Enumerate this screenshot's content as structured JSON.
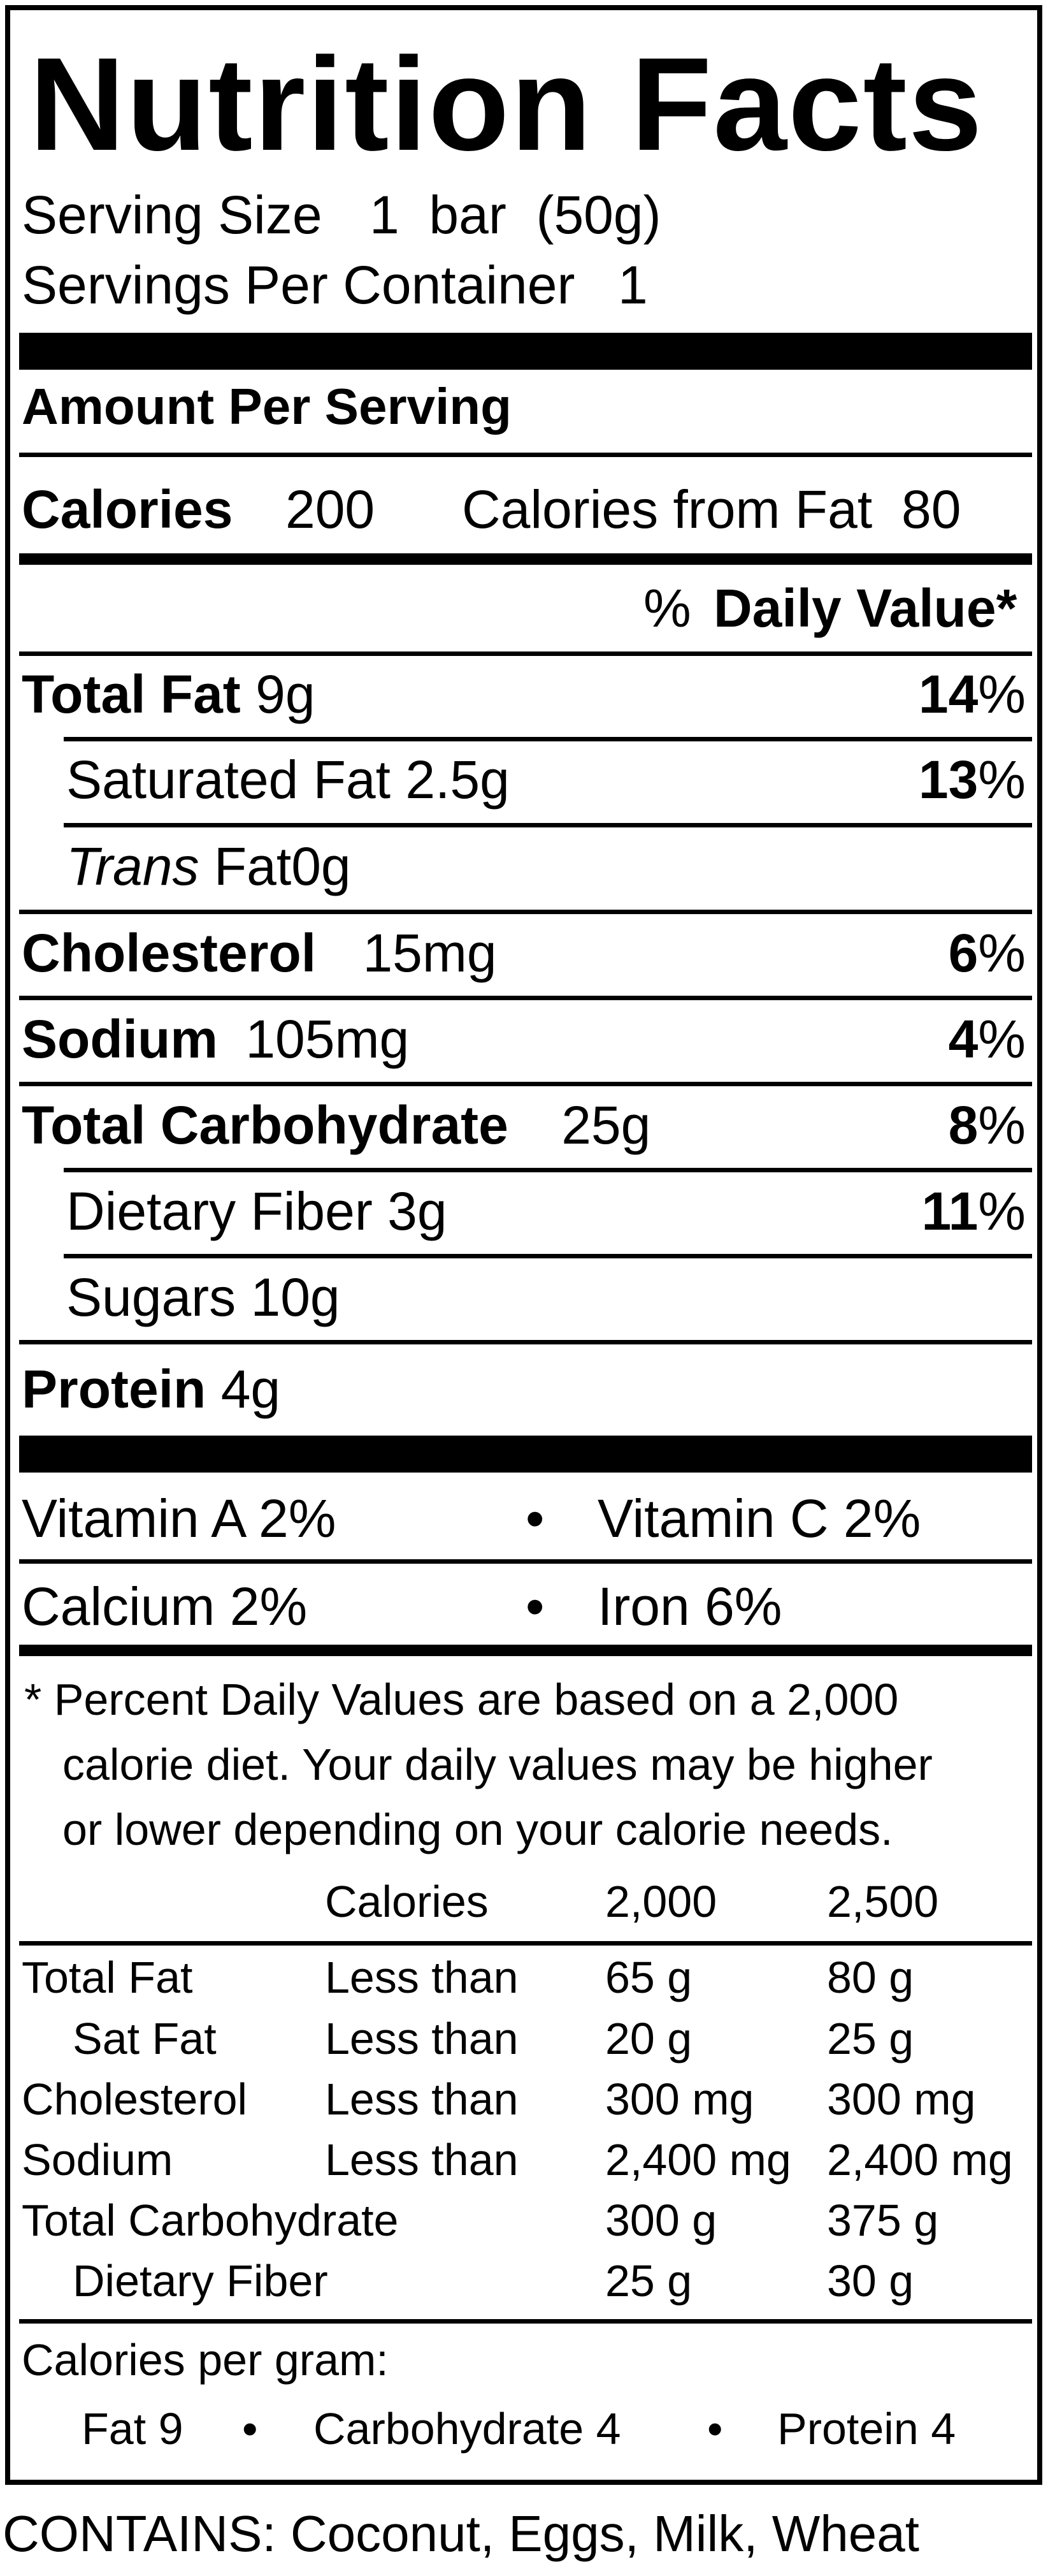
{
  "title": "Nutrition Facts",
  "serving": {
    "size_label": "Serving Size",
    "size_value": "1  bar  (50g)",
    "per_container_label": "Servings Per Container",
    "per_container_value": "1"
  },
  "amount_header": "Amount Per Serving",
  "calories": {
    "label": "Calories",
    "value": "200",
    "from_fat_label": "Calories from Fat",
    "from_fat_value": "80"
  },
  "daily_value_header": {
    "percent_sign": "%",
    "label": "Daily Value*"
  },
  "nutrients": [
    {
      "name": "Total Fat",
      "amount": "9g",
      "dv": "14",
      "pct": "%"
    },
    {
      "name": "Saturated Fat",
      "amount": "2.5g",
      "dv": "13",
      "pct": "%"
    },
    {
      "name_italic": "Trans",
      "name": "Fat",
      "amount": "0g"
    },
    {
      "name": "Cholesterol",
      "amount": "15mg",
      "dv": "6",
      "pct": "%"
    },
    {
      "name": "Sodium",
      "amount": "105mg",
      "dv": "4",
      "pct": "%"
    },
    {
      "name": "Total Carbohydrate",
      "amount": "25g",
      "dv": "8",
      "pct": "%"
    },
    {
      "name": "Dietary Fiber",
      "amount": "3g",
      "dv": "11",
      "pct": "%"
    },
    {
      "name": "Sugars",
      "amount": "10g"
    },
    {
      "name": "Protein",
      "amount": "4g"
    }
  ],
  "vitamins": [
    {
      "name": "Vitamin A",
      "value": "2%"
    },
    {
      "name": "Vitamin C",
      "value": "2%"
    },
    {
      "name": "Calcium",
      "value": "2%"
    },
    {
      "name": "Iron",
      "value": "6%"
    }
  ],
  "bullet": "•",
  "footnote": [
    "* Percent Daily Values are based on a 2,000",
    "calorie diet. Your daily values may be higher",
    "or lower depending on your calorie needs."
  ],
  "dv_table": {
    "headers": [
      "Calories",
      "2,000",
      "2,500"
    ],
    "rows": [
      [
        "Total Fat",
        "Less than",
        "65 g",
        "80 g"
      ],
      [
        "Sat Fat",
        "Less than",
        "20 g",
        "25 g"
      ],
      [
        "Cholesterol",
        "Less than",
        "300 mg",
        "300 mg"
      ],
      [
        "Sodium",
        "Less than",
        "2,400 mg",
        "2,400 mg"
      ],
      [
        "Total Carbohydrate",
        "",
        "300 g",
        "375 g"
      ],
      [
        "Dietary Fiber",
        "",
        "25 g",
        "30 g"
      ]
    ]
  },
  "calories_per_gram": {
    "label": "Calories per gram:",
    "fat": "Fat 9",
    "carbohydrate": "Carbohydrate 4",
    "protein": "Protein 4"
  },
  "contains": "CONTAINS: Coconut, Eggs, Milk, Wheat"
}
